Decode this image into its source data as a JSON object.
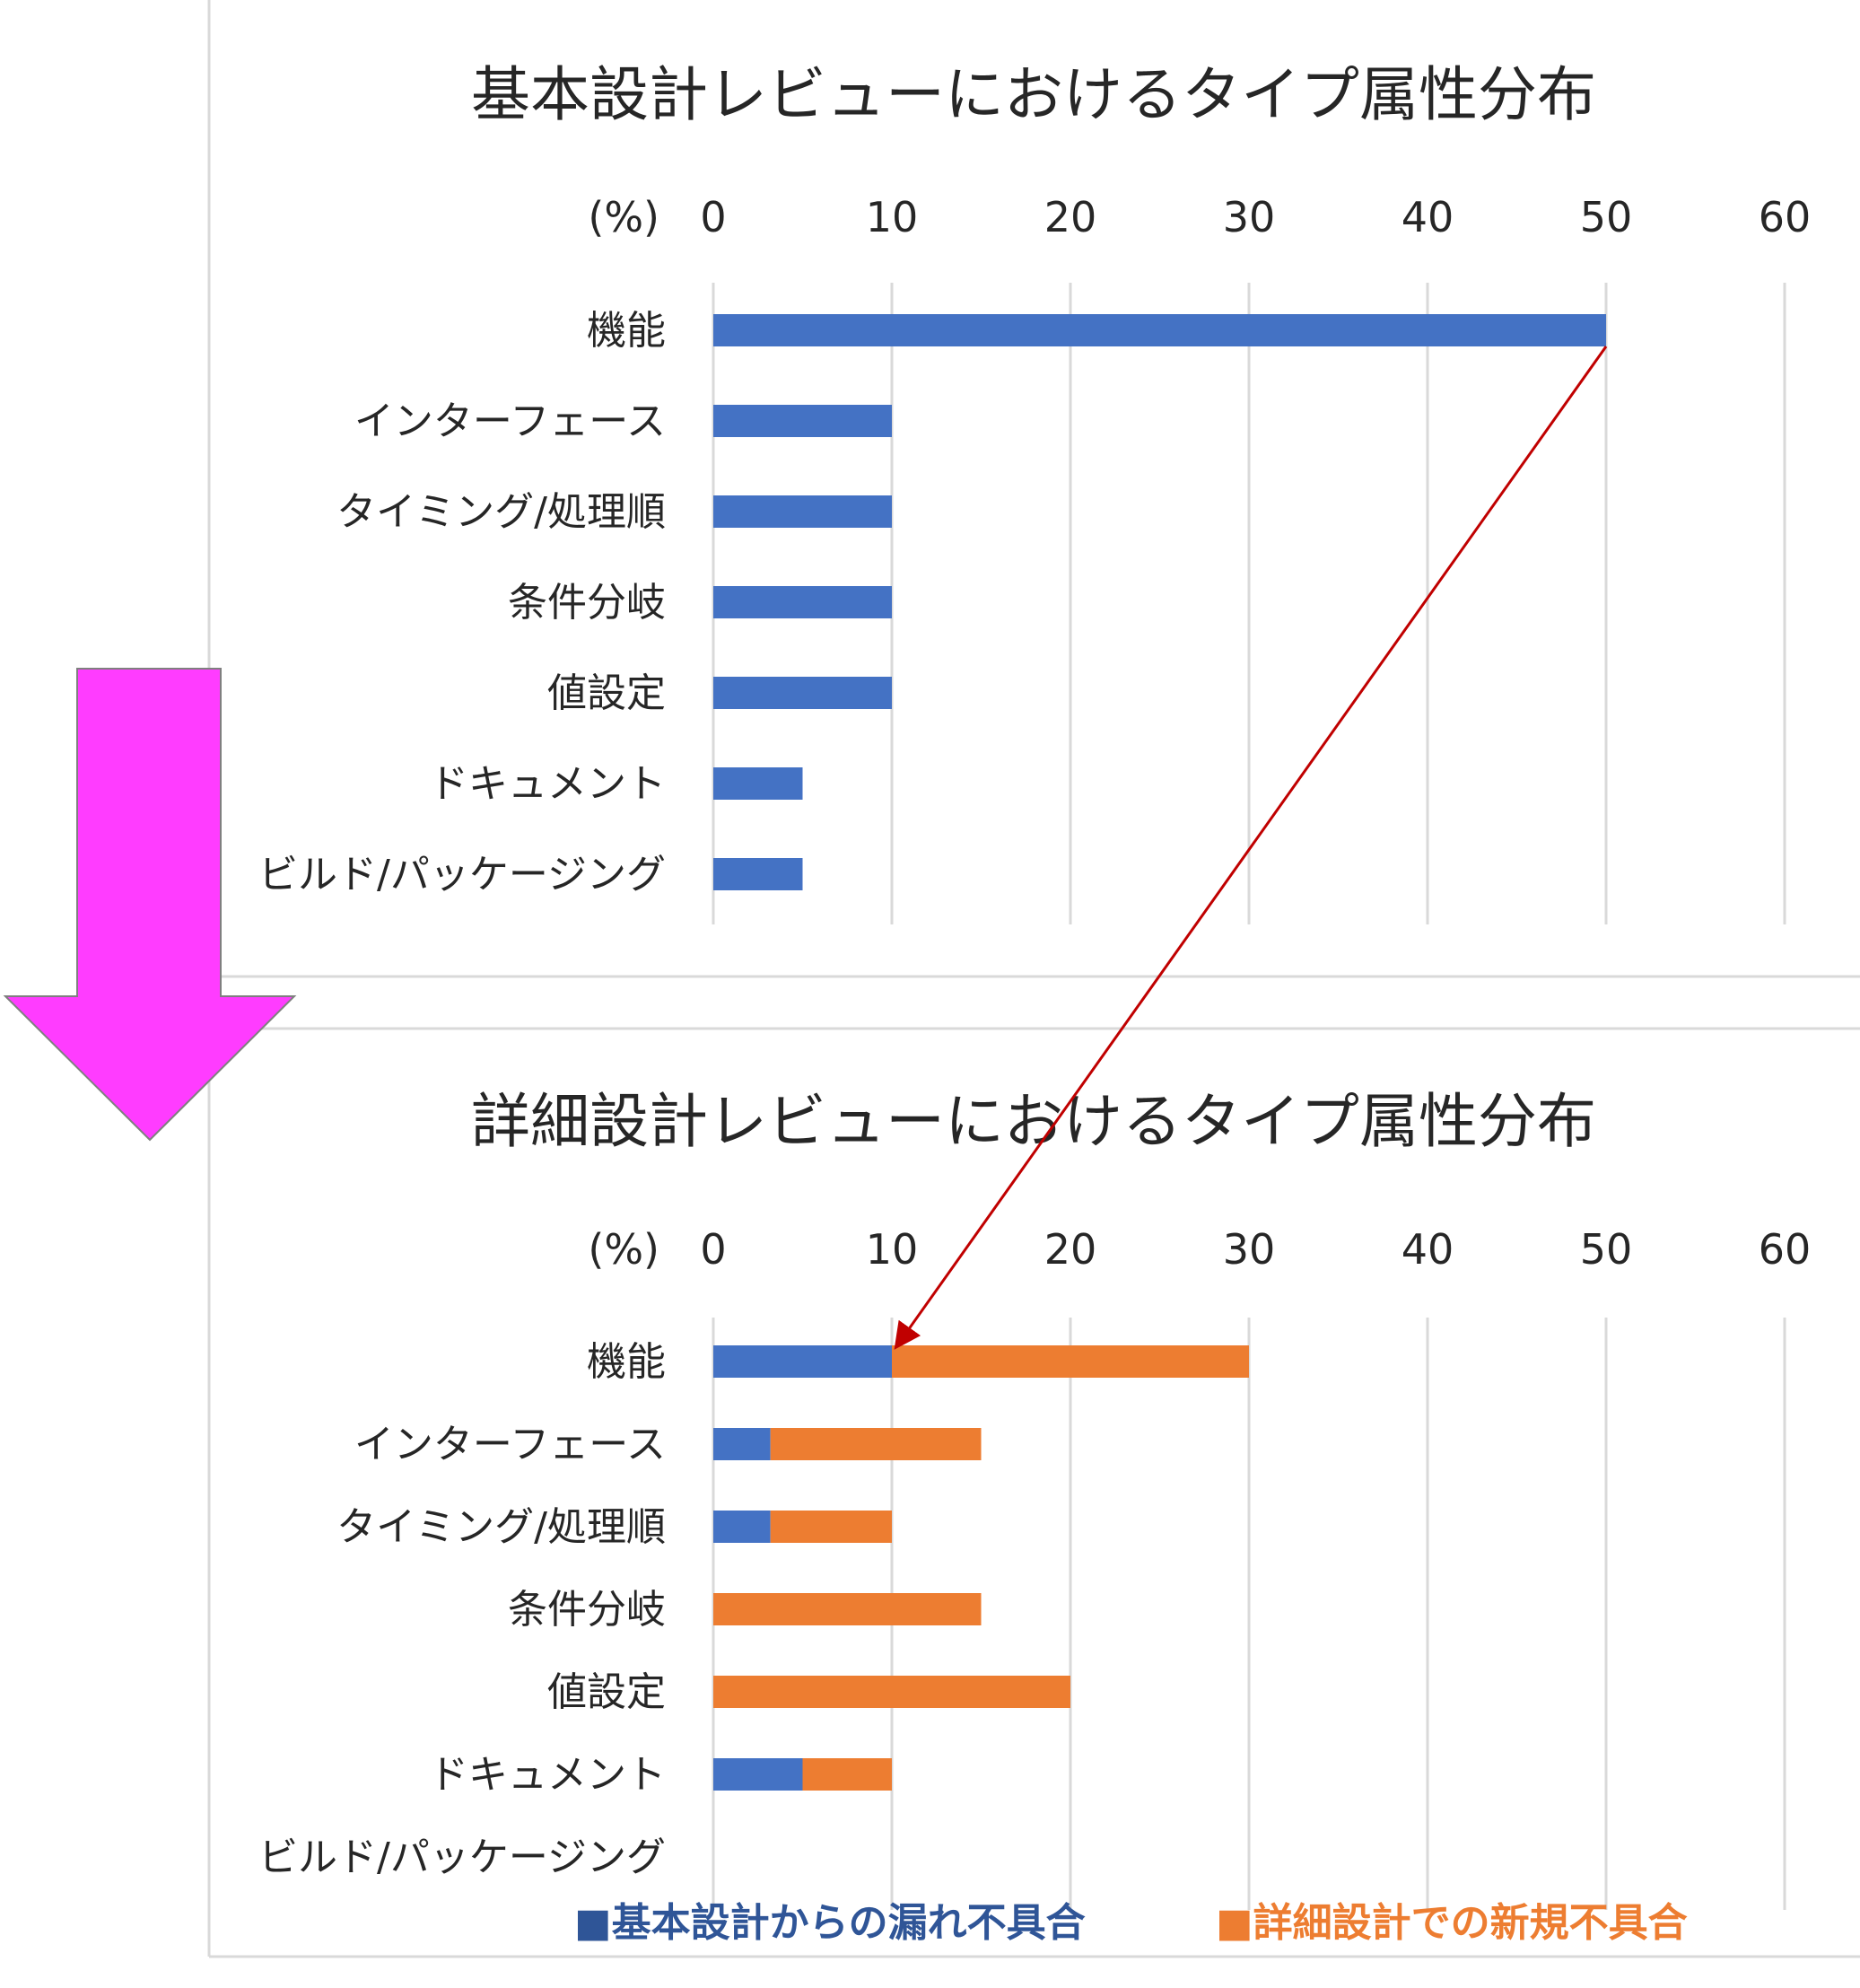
{
  "colors": {
    "blue": "#4472c4",
    "orange": "#ed7d31",
    "grid": "#d9d9d9",
    "arrow_magenta": "#ff3cff",
    "connector_red": "#c00000",
    "legend_blue": "#2f5597",
    "legend_orange": "#ed7d31"
  },
  "decorations": {
    "big_arrow": "down-arrow-icon",
    "connector": "arrow from top-chart 機能 bar end to bottom-chart 機能 blue segment end"
  },
  "chart_data": [
    {
      "type": "bar",
      "orientation": "horizontal",
      "title": "基本設計レビューにおけるタイプ属性分布",
      "unit_label": "(%)",
      "xlim": [
        0,
        60
      ],
      "x_ticks": [
        "0",
        "10",
        "20",
        "30",
        "40",
        "50",
        "60"
      ],
      "grid": true,
      "categories": [
        "機能",
        "インターフェース",
        "タイミング/処理順",
        "条件分岐",
        "値設定",
        "ドキュメント",
        "ビルド/パッケージング"
      ],
      "series": [
        {
          "color": "#4472c4",
          "values": [
            50,
            10,
            10,
            10,
            10,
            5,
            5
          ]
        }
      ]
    },
    {
      "type": "bar",
      "orientation": "horizontal",
      "stacked": true,
      "title": "詳細設計レビューにおけるタイプ属性分布",
      "unit_label": "(%)",
      "xlim": [
        0,
        60
      ],
      "x_ticks": [
        "0",
        "10",
        "20",
        "30",
        "40",
        "50",
        "60"
      ],
      "grid": true,
      "categories": [
        "機能",
        "インターフェース",
        "タイミング/処理順",
        "条件分岐",
        "値設定",
        "ドキュメント",
        "ビルド/パッケージング"
      ],
      "legend_position": "bottom",
      "series": [
        {
          "name": "■基本設計からの漏れ不具合",
          "color": "#4472c4",
          "values": [
            10,
            3.2,
            3.2,
            0,
            0,
            5,
            0
          ]
        },
        {
          "name": "■詳細設計での新規不具合",
          "color": "#ed7d31",
          "values": [
            20,
            11.8,
            6.8,
            15,
            20,
            5,
            0
          ]
        }
      ]
    }
  ]
}
